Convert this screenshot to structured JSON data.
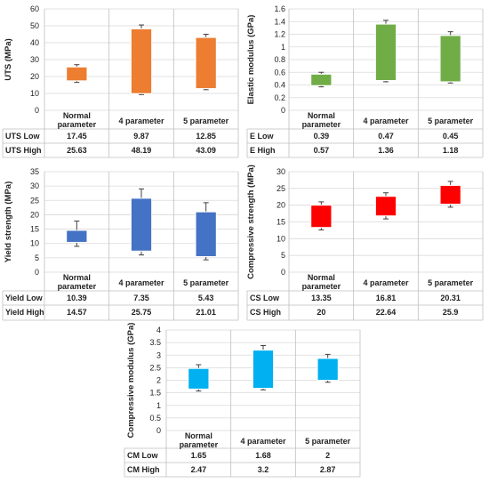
{
  "chart_data": [
    {
      "type": "bar",
      "chart_kind": "floating-range-with-error-bars",
      "ylabel": "UTS (MPa)",
      "ylim": [
        0,
        60
      ],
      "yticks": [
        "0",
        "10",
        "20",
        "30",
        "40",
        "50",
        "60"
      ],
      "categories": [
        "Normal parameter",
        "4 parameter",
        "5 parameter"
      ],
      "category_lines": [
        [
          "Normal",
          "parameter"
        ],
        [
          "4 parameter"
        ],
        [
          "5 parameter"
        ]
      ],
      "color": "#ED7D31",
      "series": [
        {
          "name": "UTS Low",
          "values": [
            17.45,
            9.87,
            12.85
          ]
        },
        {
          "name": "UTS High",
          "values": [
            25.63,
            48.19,
            43.09
          ]
        }
      ],
      "errors": {
        "low": [
          16.5,
          9.3,
          12.2
        ],
        "high": [
          27.0,
          50.5,
          45.0
        ]
      },
      "grid": true
    },
    {
      "type": "bar",
      "chart_kind": "floating-range-with-error-bars",
      "ylabel": "Elastic modulus (GPa)",
      "ylim": [
        0,
        1.6
      ],
      "yticks": [
        "0",
        "0.2",
        "0.4",
        "0.6",
        "0.8",
        "1",
        "1.2",
        "1.4",
        "1.6"
      ],
      "categories": [
        "Normal parameter",
        "4 parameter",
        "5 parameter"
      ],
      "category_lines": [
        [
          "Normal",
          "parameter"
        ],
        [
          "4 parameter"
        ],
        [
          "5 parameter"
        ]
      ],
      "color": "#70AD47",
      "series": [
        {
          "name": "E Low",
          "values": [
            0.39,
            0.47,
            0.45
          ]
        },
        {
          "name": "E High",
          "values": [
            0.57,
            1.36,
            1.18
          ]
        }
      ],
      "errors": {
        "low": [
          0.37,
          0.45,
          0.43
        ],
        "high": [
          0.6,
          1.42,
          1.24
        ]
      },
      "grid": true
    },
    {
      "type": "bar",
      "chart_kind": "floating-range-with-error-bars",
      "ylabel": "Yield strength (MPa)",
      "ylim": [
        0,
        35
      ],
      "yticks": [
        "0",
        "5",
        "10",
        "15",
        "20",
        "25",
        "30",
        "35"
      ],
      "categories": [
        "Normal parameter",
        "4 parameter",
        "5 parameter"
      ],
      "category_lines": [
        [
          "Normal",
          "parameter"
        ],
        [
          "4 parameter"
        ],
        [
          "5 parameter"
        ]
      ],
      "color": "#4472C4",
      "series": [
        {
          "name": "Yield Low",
          "values": [
            10.39,
            7.35,
            5.43
          ]
        },
        {
          "name": "Yield High",
          "values": [
            14.57,
            25.75,
            21.01
          ]
        }
      ],
      "errors": {
        "low": [
          9.0,
          6.0,
          4.3
        ],
        "high": [
          17.8,
          29.0,
          24.2
        ]
      },
      "grid": true
    },
    {
      "type": "bar",
      "chart_kind": "floating-range-with-error-bars",
      "ylabel": "Compressive strength (MPa)",
      "ylim": [
        0,
        30
      ],
      "yticks": [
        "0",
        "5",
        "10",
        "15",
        "20",
        "25",
        "30"
      ],
      "categories": [
        "Normal parameter",
        "4 parameter",
        "5 parameter"
      ],
      "category_lines": [
        [
          "Normal",
          "parameter"
        ],
        [
          "4 parameter"
        ],
        [
          "5 parameter"
        ]
      ],
      "color": "#FF0000",
      "series": [
        {
          "name": "CS Low",
          "values": [
            13.35,
            16.81,
            20.31
          ]
        },
        {
          "name": "CS High",
          "values": [
            20,
            22.64,
            25.9
          ]
        }
      ],
      "errors": {
        "low": [
          12.6,
          15.9,
          19.4
        ],
        "high": [
          21.0,
          23.7,
          27.1
        ]
      },
      "grid": true
    },
    {
      "type": "bar",
      "chart_kind": "floating-range-with-error-bars",
      "ylabel": "Compressive modulus (GPa)",
      "ylim": [
        0,
        4
      ],
      "yticks": [
        "0",
        "0.5",
        "1",
        "1.5",
        "2",
        "2.5",
        "3",
        "3.5",
        "4"
      ],
      "categories": [
        "Normal parameter",
        "4 parameter",
        "5 parameter"
      ],
      "category_lines": [
        [
          "Normal",
          "parameter"
        ],
        [
          "4 parameter"
        ],
        [
          "5 parameter"
        ]
      ],
      "color": "#00B0F0",
      "series": [
        {
          "name": "CM Low",
          "values": [
            1.65,
            1.68,
            2
          ]
        },
        {
          "name": "CM High",
          "values": [
            2.47,
            3.2,
            2.87
          ]
        }
      ],
      "errors": {
        "low": [
          1.57,
          1.62,
          1.92
        ],
        "high": [
          2.62,
          3.38,
          3.03
        ]
      },
      "grid": true
    }
  ]
}
